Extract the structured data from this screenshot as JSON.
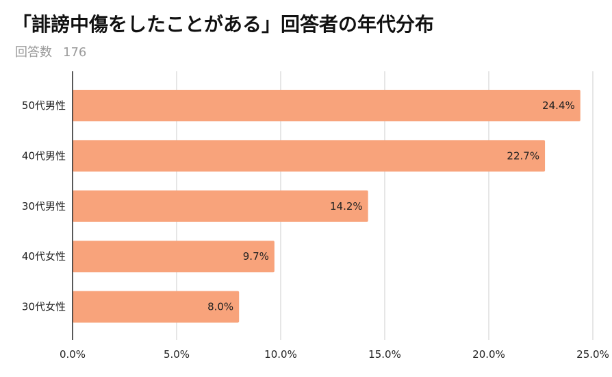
{
  "header": {
    "title": "「誹謗中傷をしたことがある」回答者の年代分布",
    "respondents_label": "回答数",
    "respondents_count": "176"
  },
  "chart_data": {
    "type": "bar",
    "orientation": "horizontal",
    "categories": [
      "50代男性",
      "40代男性",
      "30代男性",
      "40代女性",
      "30代女性"
    ],
    "values": [
      24.4,
      22.7,
      14.2,
      9.7,
      8.0
    ],
    "data_labels": [
      "24.4%",
      "22.7%",
      "14.2%",
      "9.7%",
      "8.0%"
    ],
    "xlim": [
      0,
      25
    ],
    "ticks": [
      0,
      5,
      10,
      15,
      20,
      25
    ],
    "tick_labels": [
      "0.0%",
      "5.0%",
      "10.0%",
      "15.0%",
      "20.0%",
      "25.0%"
    ],
    "grid": true,
    "bar_color": "#f8a37b",
    "grid_color": "#cccccc",
    "axis_color": "#222222"
  }
}
